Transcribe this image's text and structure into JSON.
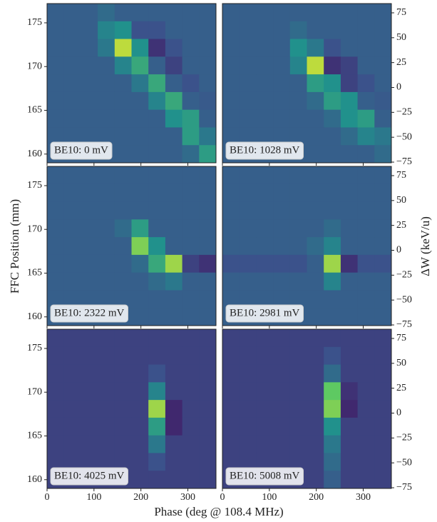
{
  "chart_data": {
    "type": "heatmap",
    "xlabel": "Phase (deg @ 108.4 MHz)",
    "ylabel": "FFC Position (mm)",
    "y2label": "ΔW (keV/u)",
    "colormap": "viridis",
    "xlim": [
      0,
      360
    ],
    "xticks": [
      0,
      100,
      200,
      300
    ],
    "ylim": [
      159,
      177.2
    ],
    "yticks": [
      160,
      165,
      170,
      175
    ],
    "y2lim": [
      -75.7,
      84.3
    ],
    "y2ticks": [
      {
        "value": -75,
        "label": "−75"
      },
      {
        "value": -50,
        "label": "−50"
      },
      {
        "value": -25,
        "label": "−25"
      },
      0,
      25,
      50,
      75
    ],
    "panels": [
      {
        "label": "BE10: 0 mV",
        "z": [
          [
            0.3,
            0.3,
            0.3,
            0.35,
            0.3,
            0.3,
            0.3,
            0.3,
            0.3,
            0.3
          ],
          [
            0.3,
            0.3,
            0.3,
            0.45,
            0.5,
            0.25,
            0.25,
            0.3,
            0.3,
            0.3
          ],
          [
            0.3,
            0.3,
            0.3,
            0.4,
            0.9,
            0.5,
            0.15,
            0.25,
            0.3,
            0.3
          ],
          [
            0.3,
            0.3,
            0.3,
            0.3,
            0.45,
            0.6,
            0.3,
            0.2,
            0.3,
            0.3
          ],
          [
            0.3,
            0.3,
            0.3,
            0.3,
            0.3,
            0.4,
            0.6,
            0.3,
            0.25,
            0.3
          ],
          [
            0.3,
            0.3,
            0.3,
            0.3,
            0.3,
            0.3,
            0.45,
            0.6,
            0.3,
            0.28
          ],
          [
            0.3,
            0.3,
            0.3,
            0.3,
            0.3,
            0.3,
            0.3,
            0.5,
            0.55,
            0.3
          ],
          [
            0.3,
            0.3,
            0.3,
            0.3,
            0.3,
            0.3,
            0.3,
            0.3,
            0.55,
            0.4
          ],
          [
            0.3,
            0.3,
            0.3,
            0.3,
            0.3,
            0.3,
            0.3,
            0.3,
            0.35,
            0.55
          ]
        ]
      },
      {
        "label": "BE10: 1028 mV",
        "z": [
          [
            0.3,
            0.3,
            0.3,
            0.3,
            0.3,
            0.3,
            0.3,
            0.3,
            0.3,
            0.3
          ],
          [
            0.3,
            0.3,
            0.3,
            0.3,
            0.35,
            0.3,
            0.3,
            0.3,
            0.3,
            0.3
          ],
          [
            0.3,
            0.3,
            0.3,
            0.3,
            0.5,
            0.4,
            0.25,
            0.3,
            0.3,
            0.3
          ],
          [
            0.3,
            0.3,
            0.3,
            0.3,
            0.45,
            0.9,
            0.15,
            0.2,
            0.3,
            0.3
          ],
          [
            0.3,
            0.3,
            0.3,
            0.3,
            0.3,
            0.55,
            0.5,
            0.2,
            0.25,
            0.3
          ],
          [
            0.3,
            0.3,
            0.3,
            0.3,
            0.3,
            0.35,
            0.55,
            0.5,
            0.3,
            0.28
          ],
          [
            0.3,
            0.3,
            0.3,
            0.3,
            0.3,
            0.3,
            0.35,
            0.5,
            0.55,
            0.3
          ],
          [
            0.3,
            0.3,
            0.3,
            0.3,
            0.3,
            0.3,
            0.3,
            0.35,
            0.45,
            0.4
          ],
          [
            0.3,
            0.3,
            0.3,
            0.3,
            0.3,
            0.3,
            0.3,
            0.3,
            0.3,
            0.35
          ]
        ]
      },
      {
        "label": "BE10: 2322 mV",
        "z": [
          [
            0.3,
            0.3,
            0.3,
            0.3,
            0.3,
            0.3,
            0.3,
            0.3,
            0.3,
            0.3
          ],
          [
            0.3,
            0.3,
            0.3,
            0.3,
            0.3,
            0.3,
            0.3,
            0.3,
            0.3,
            0.3
          ],
          [
            0.3,
            0.3,
            0.3,
            0.3,
            0.3,
            0.3,
            0.3,
            0.3,
            0.3,
            0.3
          ],
          [
            0.3,
            0.3,
            0.3,
            0.3,
            0.35,
            0.55,
            0.3,
            0.3,
            0.3,
            0.3
          ],
          [
            0.3,
            0.3,
            0.3,
            0.3,
            0.3,
            0.8,
            0.5,
            0.3,
            0.3,
            0.3
          ],
          [
            0.3,
            0.3,
            0.3,
            0.3,
            0.3,
            0.35,
            0.6,
            0.85,
            0.2,
            0.15
          ],
          [
            0.3,
            0.3,
            0.3,
            0.3,
            0.3,
            0.3,
            0.35,
            0.4,
            0.3,
            0.3
          ],
          [
            0.3,
            0.3,
            0.3,
            0.3,
            0.3,
            0.3,
            0.3,
            0.3,
            0.3,
            0.3
          ],
          [
            0.3,
            0.3,
            0.3,
            0.3,
            0.3,
            0.3,
            0.3,
            0.3,
            0.3,
            0.3
          ]
        ]
      },
      {
        "label": "BE10: 2981 mV",
        "z": [
          [
            0.3,
            0.3,
            0.3,
            0.3,
            0.3,
            0.3,
            0.3,
            0.3,
            0.3,
            0.3
          ],
          [
            0.3,
            0.3,
            0.3,
            0.3,
            0.3,
            0.3,
            0.3,
            0.3,
            0.3,
            0.3
          ],
          [
            0.3,
            0.3,
            0.3,
            0.3,
            0.3,
            0.3,
            0.3,
            0.3,
            0.3,
            0.3
          ],
          [
            0.3,
            0.3,
            0.3,
            0.3,
            0.3,
            0.3,
            0.35,
            0.3,
            0.3,
            0.3
          ],
          [
            0.3,
            0.3,
            0.3,
            0.3,
            0.3,
            0.35,
            0.45,
            0.3,
            0.3,
            0.3
          ],
          [
            0.25,
            0.25,
            0.25,
            0.25,
            0.25,
            0.3,
            0.85,
            0.15,
            0.25,
            0.25
          ],
          [
            0.3,
            0.3,
            0.3,
            0.3,
            0.3,
            0.3,
            0.45,
            0.3,
            0.3,
            0.3
          ],
          [
            0.3,
            0.3,
            0.3,
            0.3,
            0.3,
            0.3,
            0.3,
            0.3,
            0.3,
            0.3
          ],
          [
            0.3,
            0.3,
            0.3,
            0.3,
            0.3,
            0.3,
            0.3,
            0.3,
            0.3,
            0.3
          ]
        ]
      },
      {
        "label": "BE10: 4025 mV",
        "z": [
          [
            0.2,
            0.2,
            0.2,
            0.2,
            0.2,
            0.2,
            0.2,
            0.2,
            0.2,
            0.2
          ],
          [
            0.2,
            0.2,
            0.2,
            0.2,
            0.2,
            0.2,
            0.2,
            0.2,
            0.2,
            0.2
          ],
          [
            0.2,
            0.2,
            0.2,
            0.2,
            0.2,
            0.2,
            0.25,
            0.2,
            0.2,
            0.2
          ],
          [
            0.2,
            0.2,
            0.2,
            0.2,
            0.2,
            0.2,
            0.45,
            0.2,
            0.2,
            0.2
          ],
          [
            0.2,
            0.2,
            0.2,
            0.2,
            0.2,
            0.2,
            0.85,
            0.12,
            0.2,
            0.2
          ],
          [
            0.2,
            0.2,
            0.2,
            0.2,
            0.2,
            0.2,
            0.55,
            0.12,
            0.2,
            0.2
          ],
          [
            0.2,
            0.2,
            0.2,
            0.2,
            0.2,
            0.2,
            0.4,
            0.2,
            0.2,
            0.2
          ],
          [
            0.2,
            0.2,
            0.2,
            0.2,
            0.2,
            0.2,
            0.25,
            0.2,
            0.2,
            0.2
          ],
          [
            0.2,
            0.2,
            0.2,
            0.2,
            0.2,
            0.2,
            0.2,
            0.2,
            0.2,
            0.2
          ]
        ]
      },
      {
        "label": "BE10: 5008 mV",
        "z": [
          [
            0.2,
            0.2,
            0.2,
            0.2,
            0.2,
            0.2,
            0.2,
            0.2,
            0.2,
            0.2
          ],
          [
            0.2,
            0.2,
            0.2,
            0.2,
            0.2,
            0.2,
            0.25,
            0.2,
            0.2,
            0.2
          ],
          [
            0.2,
            0.2,
            0.2,
            0.2,
            0.2,
            0.2,
            0.35,
            0.2,
            0.2,
            0.2
          ],
          [
            0.2,
            0.2,
            0.2,
            0.2,
            0.2,
            0.2,
            0.75,
            0.15,
            0.2,
            0.2
          ],
          [
            0.2,
            0.2,
            0.2,
            0.2,
            0.2,
            0.2,
            0.8,
            0.12,
            0.2,
            0.2
          ],
          [
            0.2,
            0.2,
            0.2,
            0.2,
            0.2,
            0.2,
            0.5,
            0.2,
            0.2,
            0.2
          ],
          [
            0.2,
            0.2,
            0.2,
            0.2,
            0.2,
            0.2,
            0.4,
            0.2,
            0.2,
            0.2
          ],
          [
            0.2,
            0.2,
            0.2,
            0.2,
            0.2,
            0.2,
            0.35,
            0.2,
            0.2,
            0.2
          ],
          [
            0.2,
            0.2,
            0.2,
            0.2,
            0.2,
            0.2,
            0.3,
            0.2,
            0.2,
            0.2
          ]
        ]
      }
    ]
  }
}
